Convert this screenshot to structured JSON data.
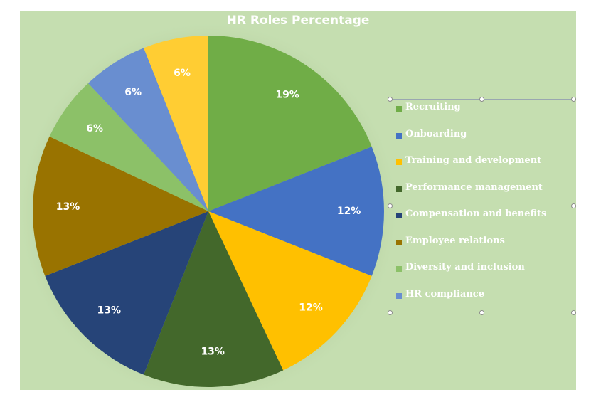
{
  "chart_data": {
    "type": "pie",
    "title": "HR Roles Percentage",
    "slices": [
      {
        "name": "Recruiting",
        "value": 19,
        "label": "19%",
        "color": "#70ad47"
      },
      {
        "name": "Onboarding",
        "value": 12,
        "label": "12%",
        "color": "#4472c4"
      },
      {
        "name": "Training and development",
        "value": 12,
        "label": "12%",
        "color": "#ffc000"
      },
      {
        "name": "Performance management",
        "value": 13,
        "label": "13%",
        "color": "#43682b"
      },
      {
        "name": "Compensation and benefits",
        "value": 13,
        "label": "13%",
        "color": "#264478"
      },
      {
        "name": "Employee relations",
        "value": 13,
        "label": "13%",
        "color": "#997300"
      },
      {
        "name": "Diversity and inclusion",
        "value": 6,
        "label": "6%",
        "color": "#8cc168"
      },
      {
        "name": "HR compliance",
        "value": 6,
        "label": "6%",
        "color": "#698ed0"
      },
      {
        "name": "",
        "value": 6,
        "label": "6%",
        "color": "#ffcd33"
      }
    ],
    "legend_position": "right",
    "background_color": "#c5deb0"
  }
}
